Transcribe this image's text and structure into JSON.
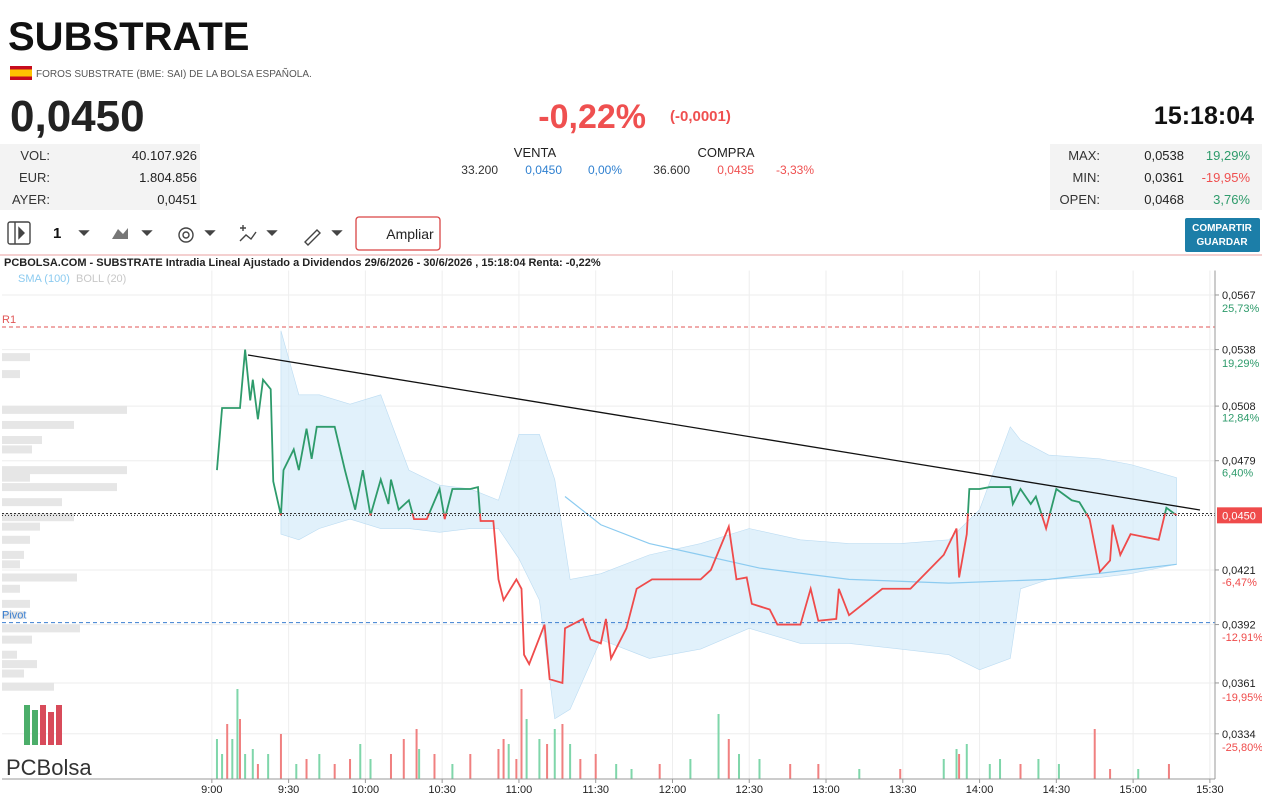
{
  "header": {
    "title": "SUBSTRATE",
    "subtitle": "FOROS SUBSTRATE (BME: SAI) DE LA BOLSA ESPAÑOLA.",
    "price": "0,0450",
    "change_pct": "-0,22%",
    "change_abs": "(-0,0001)",
    "time": "15:18:04"
  },
  "stats_left": [
    {
      "label": "VOL:",
      "value": "40.107.926"
    },
    {
      "label": "EUR:",
      "value": "1.804.856"
    },
    {
      "label": "AYER:",
      "value": "0,0451"
    }
  ],
  "quote": {
    "venta": {
      "label": "VENTA",
      "qty": "33.200",
      "price": "0,0450",
      "pct": "0,00%"
    },
    "compra": {
      "label": "COMPRA",
      "qty": "36.600",
      "price": "0,0435",
      "pct": "-3,33%"
    }
  },
  "stats_right": [
    {
      "label": "MAX:",
      "value": "0,0538",
      "pct": "19,29%"
    },
    {
      "label": "MIN:",
      "value": "0,0361",
      "pct": "-19,95%"
    },
    {
      "label": "OPEN:",
      "value": "0,0468",
      "pct": "3,76%"
    }
  ],
  "toolbar": {
    "interval": "1",
    "zoom": "Ampliar",
    "share": "COMPARTIR",
    "save": "GUARDAR"
  },
  "logo": "PCBolsa",
  "chart_data": {
    "type": "line",
    "title": "PCBOLSA.COM - SUBSTRATE Intradia Lineal Ajustado a Dividendos 29/6/2026 - 30/6/2026 , 15:18:04 Renta: -0,22%",
    "xlim": [
      458,
      932
    ],
    "xticks": [
      {
        "value": 540,
        "label": "9:00"
      },
      {
        "value": 570,
        "label": "9:30"
      },
      {
        "value": 600,
        "label": "10:00"
      },
      {
        "value": 630,
        "label": "10:30"
      },
      {
        "value": 660,
        "label": "11:00"
      },
      {
        "value": 690,
        "label": "11:30"
      },
      {
        "value": 720,
        "label": "12:00"
      },
      {
        "value": 750,
        "label": "12:30"
      },
      {
        "value": 780,
        "label": "13:00"
      },
      {
        "value": 810,
        "label": "13:30"
      },
      {
        "value": 840,
        "label": "14:00"
      },
      {
        "value": 870,
        "label": "14:30"
      },
      {
        "value": 900,
        "label": "15:00"
      },
      {
        "value": 930,
        "label": "15:30"
      }
    ],
    "ylim": [
      0.031,
      0.058
    ],
    "yticks": [
      {
        "value": 0.0567,
        "label": "0,0567"
      },
      {
        "value": 0.0538,
        "label": "0,0538"
      },
      {
        "value": 0.0508,
        "label": "0,0508"
      },
      {
        "value": 0.0479,
        "label": "0,0479"
      },
      {
        "value": 0.0421,
        "label": "0,0421"
      },
      {
        "value": 0.0392,
        "label": "0,0392"
      },
      {
        "value": 0.0361,
        "label": "0,0361"
      },
      {
        "value": 0.0334,
        "label": "0,0334"
      }
    ],
    "y2lim": [
      -31.11,
      28.6
    ],
    "y2ticks": [
      {
        "value": 25.73,
        "label": "25,73%"
      },
      {
        "value": 19.29,
        "label": "19,29%"
      },
      {
        "value": 12.84,
        "label": "12,84%"
      },
      {
        "value": 6.4,
        "label": "6,40%"
      },
      {
        "value": -6.47,
        "label": "-6,47%"
      },
      {
        "value": -12.91,
        "label": "-12,91%"
      },
      {
        "value": -19.95,
        "label": "-19,95%"
      },
      {
        "value": -25.8,
        "label": "-25,80%"
      }
    ],
    "grid": true,
    "reference": 0.0451,
    "series": [
      {
        "up_color": "#2e9b6b",
        "down_color": "#ef4b4b",
        "x": [
          542,
          544,
          551,
          553,
          555,
          556,
          558,
          560,
          563,
          564,
          567,
          568,
          572,
          574,
          577,
          579,
          581,
          588,
          592,
          596,
          599,
          602,
          606,
          609,
          610,
          613,
          617,
          619,
          624,
          629,
          631,
          634,
          641,
          644,
          645,
          650,
          652,
          654,
          659,
          661,
          662,
          664,
          670,
          672,
          677,
          678,
          685,
          688,
          692,
          694,
          696,
          702,
          706,
          712,
          731,
          735,
          742,
          745,
          749,
          751,
          758,
          761,
          770,
          774,
          777,
          784,
          785,
          789,
          802,
          813,
          826,
          831,
          832,
          835,
          836,
          840,
          844,
          852,
          853,
          856,
          860,
          862,
          866,
          870,
          876,
          879,
          883,
          887,
          891,
          892,
          895,
          899,
          910,
          913,
          917
        ],
        "values": [
          0.0474,
          0.0507,
          0.0507,
          0.0538,
          0.0511,
          0.0522,
          0.0501,
          0.0522,
          0.0517,
          0.0468,
          0.045,
          0.0474,
          0.0485,
          0.0474,
          0.0496,
          0.048,
          0.0497,
          0.0497,
          0.0474,
          0.0453,
          0.0474,
          0.045,
          0.0469,
          0.0456,
          0.0469,
          0.0453,
          0.0458,
          0.0448,
          0.0448,
          0.0464,
          0.0448,
          0.0464,
          0.0464,
          0.0465,
          0.0447,
          0.0447,
          0.0416,
          0.0405,
          0.0416,
          0.0411,
          0.0376,
          0.0371,
          0.0392,
          0.0363,
          0.0361,
          0.039,
          0.0395,
          0.0384,
          0.0382,
          0.0395,
          0.0374,
          0.039,
          0.0411,
          0.0416,
          0.0416,
          0.0421,
          0.0444,
          0.0416,
          0.0417,
          0.0403,
          0.04,
          0.0392,
          0.0392,
          0.0411,
          0.0394,
          0.0395,
          0.0411,
          0.0397,
          0.0411,
          0.0411,
          0.0429,
          0.0443,
          0.0417,
          0.044,
          0.0464,
          0.0464,
          0.0465,
          0.0465,
          0.0456,
          0.0464,
          0.0456,
          0.046,
          0.0443,
          0.0464,
          0.0458,
          0.0457,
          0.0448,
          0.042,
          0.0426,
          0.0445,
          0.0429,
          0.044,
          0.0437,
          0.0454,
          0.045
        ]
      }
    ],
    "sma": {
      "name": "SMA (100)",
      "color": "#8ccbf0",
      "x": [
        678,
        692,
        711,
        731,
        754,
        789,
        828,
        867,
        917
      ],
      "values": [
        0.046,
        0.0445,
        0.0435,
        0.0429,
        0.0422,
        0.0416,
        0.0414,
        0.0416,
        0.0424
      ]
    },
    "band": {
      "name": "BOLL (20)",
      "color": "#d4ebfa",
      "x": [
        567,
        574,
        582,
        594,
        606,
        617,
        629,
        641,
        652,
        660,
        668,
        674,
        680,
        692,
        711,
        731,
        750,
        770,
        789,
        809,
        828,
        840,
        852,
        856,
        867,
        887,
        899,
        917
      ],
      "upper": [
        0.0548,
        0.0514,
        0.0514,
        0.0509,
        0.0514,
        0.0474,
        0.0466,
        0.0464,
        0.0458,
        0.0493,
        0.0493,
        0.0469,
        0.0416,
        0.0419,
        0.0429,
        0.0435,
        0.0443,
        0.0437,
        0.0435,
        0.0435,
        0.0437,
        0.0453,
        0.0497,
        0.049,
        0.0482,
        0.048,
        0.0477,
        0.047
      ],
      "lower": [
        0.044,
        0.0437,
        0.0443,
        0.0448,
        0.0443,
        0.0443,
        0.0441,
        0.0443,
        0.0443,
        0.0427,
        0.0405,
        0.0342,
        0.0347,
        0.0384,
        0.0374,
        0.0379,
        0.039,
        0.0382,
        0.0382,
        0.0379,
        0.0376,
        0.0368,
        0.0374,
        0.0411,
        0.0416,
        0.0417,
        0.0419,
        0.0424
      ]
    },
    "levels": [
      {
        "label": "R1",
        "value": 0.055,
        "color": "#e05555"
      },
      {
        "label": "Pivot",
        "value": 0.0393,
        "color": "#3b7fd0"
      }
    ],
    "volume": {
      "vlim": [
        0,
        2500000
      ],
      "x": [
        542,
        544,
        546,
        548,
        550,
        551,
        553,
        556,
        558,
        562,
        567,
        573,
        577,
        582,
        588,
        594,
        598,
        602,
        610,
        615,
        620,
        621,
        627,
        634,
        641,
        652,
        654,
        656,
        659,
        661,
        663,
        668,
        671,
        674,
        677,
        680,
        684,
        690,
        698,
        704,
        715,
        727,
        738,
        742,
        746,
        754,
        766,
        777,
        793,
        809,
        826,
        831,
        832,
        835,
        844,
        848,
        856,
        863,
        871,
        885,
        891,
        902,
        914
      ],
      "values": [
        800000,
        500000,
        1100000,
        800000,
        1800000,
        1200000,
        500000,
        600000,
        300000,
        500000,
        900000,
        300000,
        400000,
        500000,
        300000,
        400000,
        700000,
        400000,
        500000,
        800000,
        1000000,
        600000,
        500000,
        300000,
        500000,
        600000,
        800000,
        700000,
        400000,
        1800000,
        1200000,
        800000,
        700000,
        1000000,
        1100000,
        700000,
        400000,
        500000,
        300000,
        200000,
        300000,
        400000,
        1300000,
        800000,
        500000,
        400000,
        300000,
        300000,
        200000,
        200000,
        400000,
        600000,
        500000,
        700000,
        300000,
        400000,
        300000,
        400000,
        300000,
        1000000,
        200000,
        200000,
        300000
      ],
      "colors": [
        "#7fd6aa",
        "#7fd6aa",
        "#f08080",
        "#7fd6aa",
        "#7fd6aa",
        "#f08080",
        "#7fd6aa",
        "#7fd6aa",
        "#f08080",
        "#7fd6aa",
        "#f08080",
        "#7fd6aa",
        "#f08080",
        "#7fd6aa",
        "#f08080",
        "#f08080",
        "#7fd6aa",
        "#7fd6aa",
        "#f08080",
        "#f08080",
        "#f08080",
        "#7fd6aa",
        "#f08080",
        "#7fd6aa",
        "#f08080",
        "#f08080",
        "#f08080",
        "#7fd6aa",
        "#f08080",
        "#f08080",
        "#7fd6aa",
        "#7fd6aa",
        "#f08080",
        "#7fd6aa",
        "#f08080",
        "#7fd6aa",
        "#f08080",
        "#f08080",
        "#7fd6aa",
        "#7fd6aa",
        "#f08080",
        "#7fd6aa",
        "#7fd6aa",
        "#f08080",
        "#7fd6aa",
        "#7fd6aa",
        "#f08080",
        "#f08080",
        "#7fd6aa",
        "#f08080",
        "#7fd6aa",
        "#7fd6aa",
        "#f08080",
        "#7fd6aa",
        "#7fd6aa",
        "#7fd6aa",
        "#f08080",
        "#7fd6aa",
        "#7fd6aa",
        "#f08080",
        "#f08080",
        "#7fd6aa",
        "#f08080"
      ]
    },
    "profile": {
      "plim": [
        0,
        3000000
      ],
      "color": "#e6e6e6",
      "levels": [
        0.0534,
        0.0525,
        0.0506,
        0.0498,
        0.049,
        0.0485,
        0.0474,
        0.047,
        0.0465,
        0.0457,
        0.0449,
        0.0444,
        0.0437,
        0.0429,
        0.0424,
        0.0417,
        0.0411,
        0.0403,
        0.0397,
        0.039,
        0.0384,
        0.0376,
        0.0371,
        0.0366,
        0.0359
      ],
      "values": [
        560000,
        360000,
        2500000,
        1440000,
        800000,
        600000,
        2500000,
        560000,
        2300000,
        1200000,
        1440000,
        760000,
        560000,
        440000,
        360000,
        1500000,
        360000,
        560000,
        440000,
        1560000,
        600000,
        300000,
        700000,
        440000,
        1040000
      ]
    }
  }
}
